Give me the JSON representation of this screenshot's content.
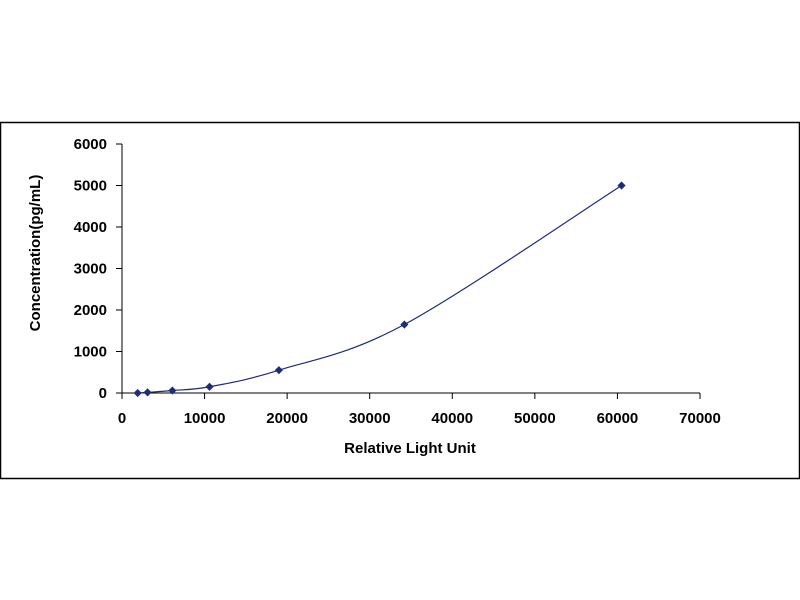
{
  "chart_data": {
    "type": "scatter",
    "title": "",
    "xlabel": "Relative Light Unit",
    "ylabel": "Concentration(pg/mL)",
    "xlim": [
      0,
      70000
    ],
    "ylim": [
      0,
      6000
    ],
    "x_ticks": [
      "0",
      "10000",
      "20000",
      "30000",
      "40000",
      "50000",
      "60000",
      "70000"
    ],
    "y_ticks": [
      "0",
      "1000",
      "2000",
      "3000",
      "4000",
      "5000",
      "6000"
    ],
    "grid": false,
    "legend": "none",
    "series": [
      {
        "x": [
          1900,
          3100,
          6100,
          10600,
          19000,
          34200,
          60500
        ],
        "y": [
          0,
          15,
          60,
          150,
          550,
          1650,
          5000
        ],
        "marker": "diamond",
        "color": "#1f2d78",
        "trendline": "smooth"
      }
    ]
  }
}
